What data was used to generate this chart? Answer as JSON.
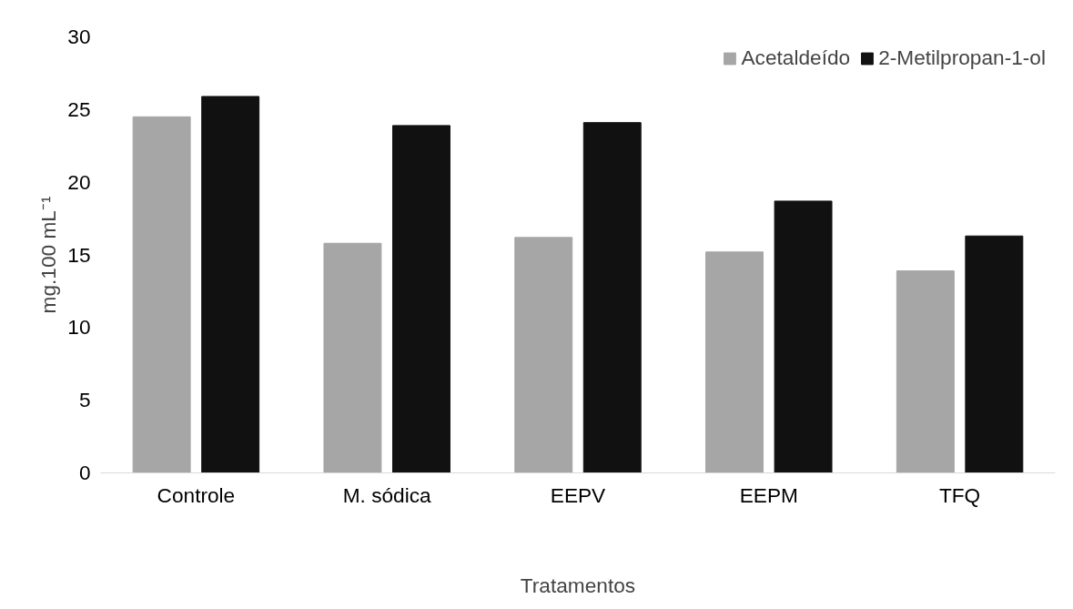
{
  "chart_data": {
    "type": "bar",
    "xlabel": "Tratamentos",
    "ylabel": "mg.100 mL⁻¹",
    "categories": [
      "Controle",
      "M. sódica",
      "EEPV",
      "EEPM",
      "TFQ"
    ],
    "series": [
      {
        "name": "Acetaldeído",
        "color": "#a6a6a6",
        "values": [
          24.5,
          15.8,
          16.2,
          15.2,
          13.9
        ]
      },
      {
        "name": "2-Metilpropan-1-ol",
        "color": "#111111",
        "values": [
          25.9,
          23.9,
          24.1,
          18.7,
          16.3
        ]
      }
    ],
    "ylim": [
      0,
      30
    ],
    "yticks": [
      0,
      5,
      10,
      15,
      20,
      25,
      30
    ],
    "grid": false,
    "legend": "top right"
  }
}
